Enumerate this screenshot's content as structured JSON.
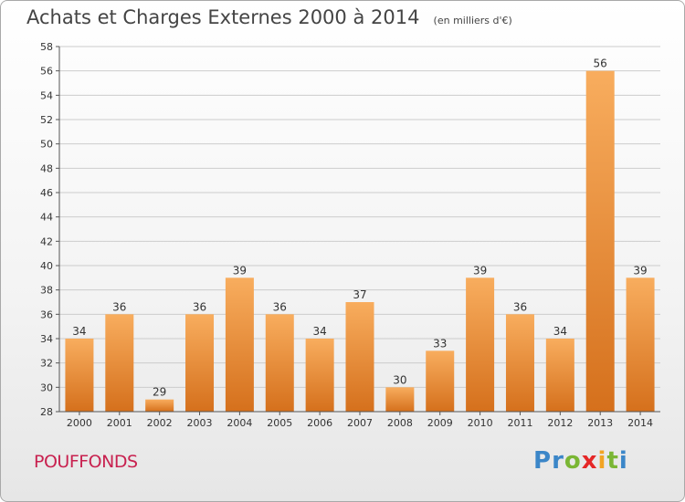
{
  "title": "Achats et Charges Externes 2000 à 2014",
  "subtitle": "(en milliers d'€)",
  "commune": "POUFFONDS",
  "brand": {
    "letters": [
      "P",
      "r",
      "o",
      "x",
      "i",
      "t",
      "i"
    ],
    "colors": [
      "#3b86c8",
      "#3b86c8",
      "#7ab634",
      "#e52727",
      "#f2a423",
      "#7ab634",
      "#3b86c8"
    ]
  },
  "colors": {
    "bar_top": "#f8ad5e",
    "bar_bottom": "#d5701c",
    "grid": "#cccccc"
  },
  "chart_data": {
    "type": "bar",
    "categories": [
      "2000",
      "2001",
      "2002",
      "2003",
      "2004",
      "2005",
      "2006",
      "2007",
      "2008",
      "2009",
      "2010",
      "2011",
      "2012",
      "2013",
      "2014"
    ],
    "values": [
      34,
      36,
      29,
      36,
      39,
      36,
      34,
      37,
      30,
      33,
      39,
      36,
      34,
      56,
      39
    ],
    "ylim": [
      28,
      58
    ],
    "yticks": [
      "28",
      "30",
      "32",
      "34",
      "36",
      "38",
      "40",
      "42",
      "44",
      "46",
      "48",
      "50",
      "52",
      "54",
      "56",
      "58"
    ],
    "grid": true,
    "data_labels": true
  }
}
